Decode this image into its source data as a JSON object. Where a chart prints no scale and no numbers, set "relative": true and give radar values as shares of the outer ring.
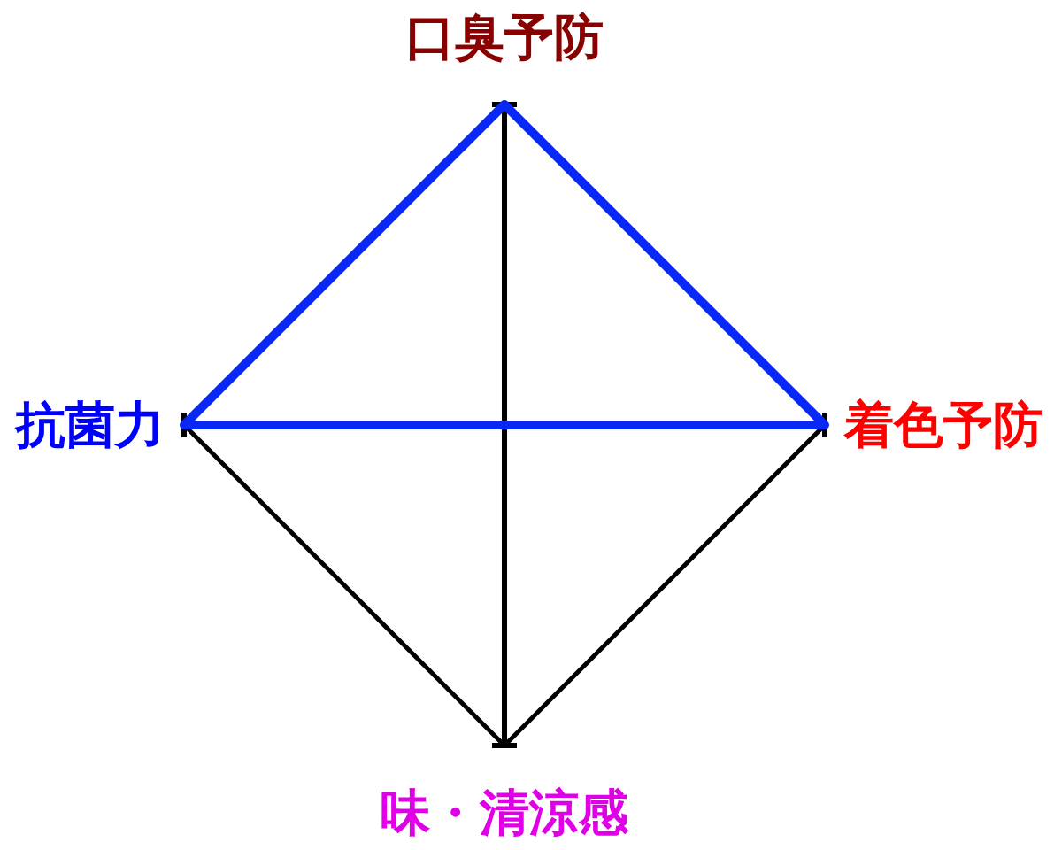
{
  "chart_data": {
    "type": "radar",
    "categories": [
      "口臭予防",
      "着色予防",
      "味・清涼感",
      "抗菌力"
    ],
    "relative": true,
    "grid": true,
    "series": [
      {
        "color": "#0a28f5",
        "values": [
          1,
          1,
          0,
          1
        ]
      }
    ]
  }
}
